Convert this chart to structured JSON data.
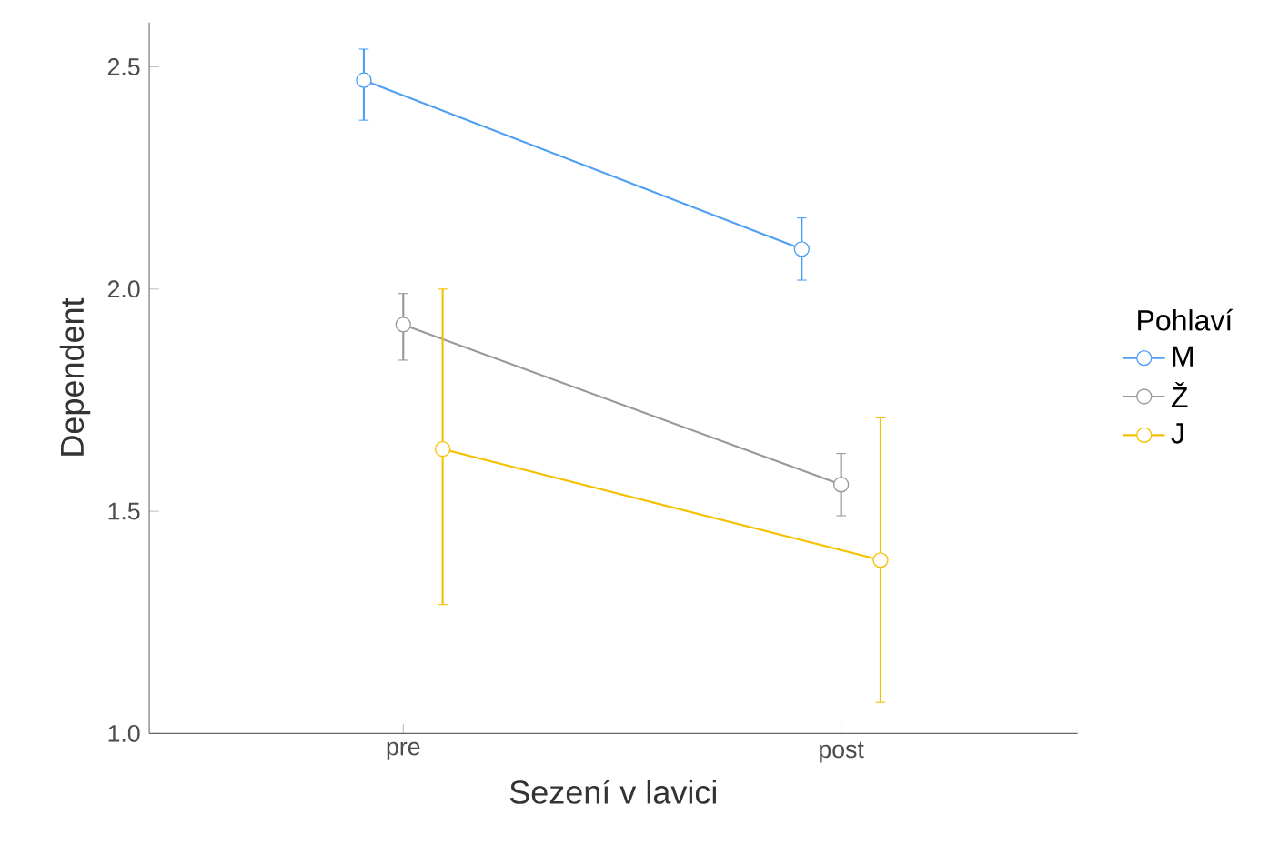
{
  "chart_data": {
    "type": "line",
    "xlabel": "Sezení v lavici",
    "ylabel": "Dependent",
    "legend_title": "Pohlaví",
    "categories": [
      "pre",
      "post"
    ],
    "series": [
      {
        "name": "M",
        "color": "#4f9ef5",
        "values": [
          2.47,
          2.09
        ],
        "errors": [
          [
            2.38,
            2.54
          ],
          [
            2.02,
            2.16
          ]
        ]
      },
      {
        "name": "Ž",
        "color": "#999999",
        "values": [
          1.92,
          1.56
        ],
        "errors": [
          [
            1.84,
            1.99
          ],
          [
            1.49,
            1.63
          ]
        ]
      },
      {
        "name": "J",
        "color": "#f5c000",
        "values": [
          1.64,
          1.39
        ],
        "errors": [
          [
            1.29,
            2.0
          ],
          [
            1.07,
            1.71
          ]
        ]
      }
    ],
    "ylim": [
      1.0,
      2.6
    ],
    "yticks": [
      {
        "value": 1.0,
        "label": "1.0"
      },
      {
        "value": 1.5,
        "label": "1.5"
      },
      {
        "value": 2.0,
        "label": "2.0"
      },
      {
        "value": 2.5,
        "label": "2.5"
      }
    ],
    "marker": "circle",
    "legend": "right",
    "grid": false
  }
}
